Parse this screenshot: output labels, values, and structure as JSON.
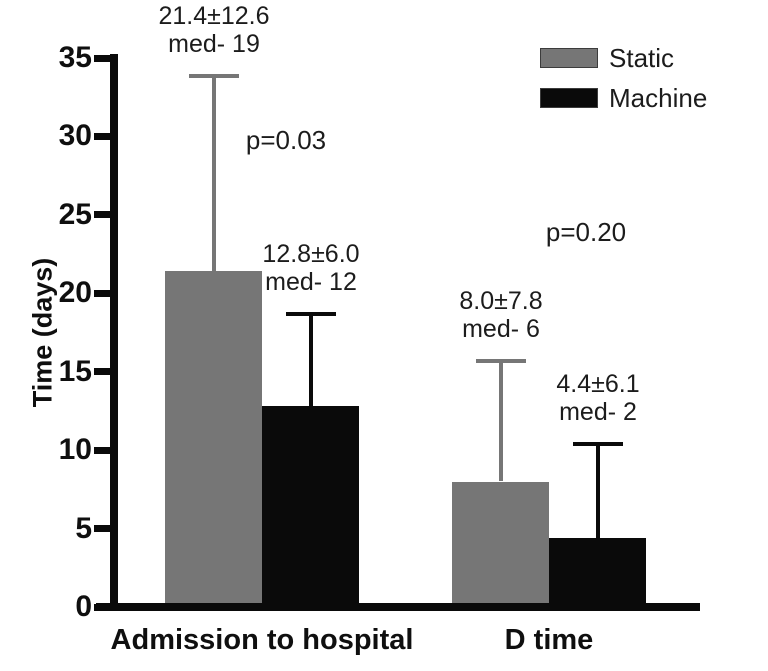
{
  "figure_title": "",
  "chart_data": {
    "type": "bar",
    "title": "",
    "xlabel": "",
    "ylabel": "Time (days)",
    "ylim": [
      0,
      35
    ],
    "yticks": [
      0,
      5,
      10,
      15,
      20,
      25,
      30,
      35
    ],
    "grid": false,
    "legend_position": "top-right",
    "error_bars": "sd-upper-only",
    "categories": [
      "Admission to hospital",
      "D time"
    ],
    "series": [
      {
        "name": "Static",
        "color": "#767676",
        "values": [
          21.4,
          8.0
        ],
        "sd": [
          12.6,
          7.8
        ],
        "medians": [
          19,
          6
        ],
        "bar_labels": [
          [
            "21.4±12.6",
            "med- 19"
          ],
          [
            "8.0±7.8",
            "med- 6"
          ]
        ]
      },
      {
        "name": "Machine",
        "color": "#0a0a0a",
        "values": [
          12.8,
          4.4
        ],
        "sd": [
          6.0,
          6.1
        ],
        "medians": [
          12,
          2
        ],
        "bar_labels": [
          [
            "12.8±6.0",
            "med- 12"
          ],
          [
            "4.4±6.1",
            "med- 2"
          ]
        ]
      }
    ],
    "p_values": [
      "p=0.03",
      "p=0.20"
    ]
  },
  "legend": {
    "items": [
      {
        "label": "Static",
        "color": "#767676"
      },
      {
        "label": "Machine",
        "color": "#0a0a0a"
      }
    ]
  }
}
